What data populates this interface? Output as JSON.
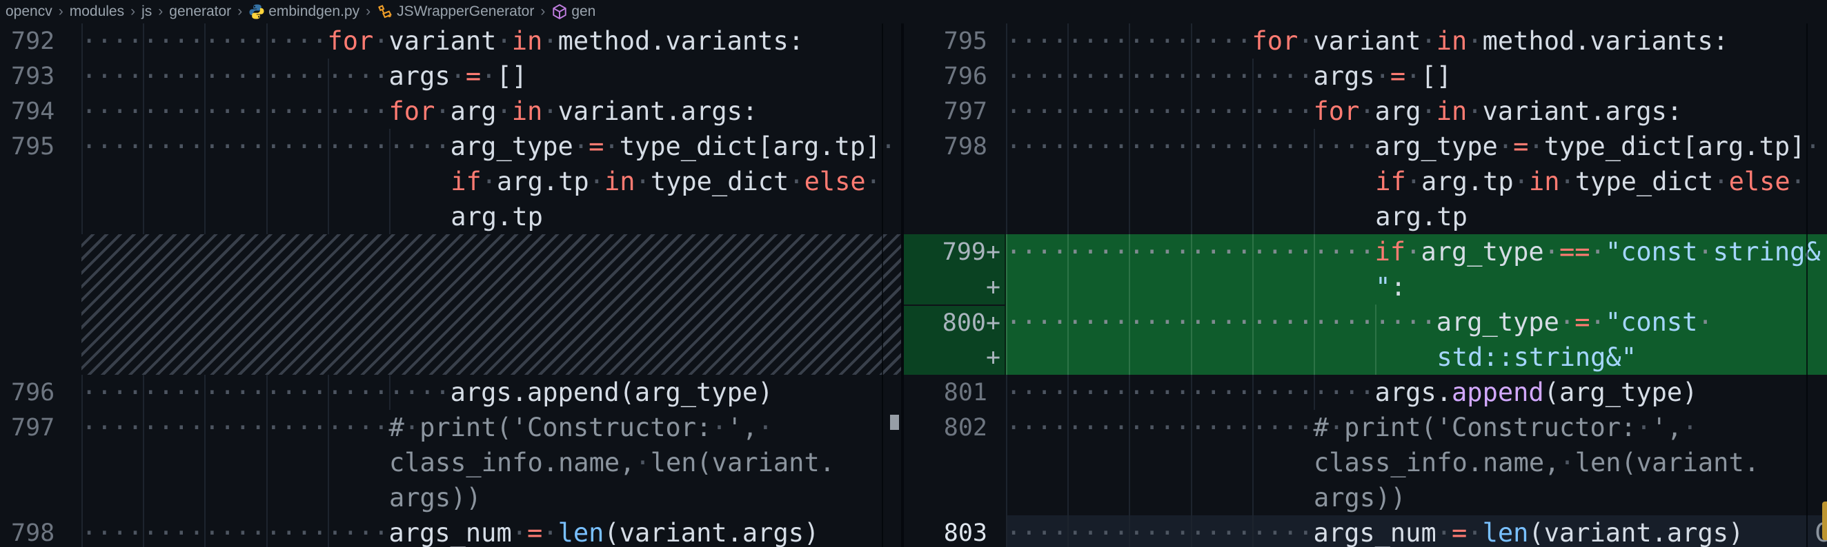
{
  "breadcrumb": {
    "separator": "›",
    "items": [
      {
        "label": "opencv"
      },
      {
        "label": "modules"
      },
      {
        "label": "js"
      },
      {
        "label": "generator"
      },
      {
        "label": "embindgen.py",
        "icon": "python-icon"
      },
      {
        "label": "JSWrapperGenerator",
        "icon": "class-icon"
      },
      {
        "label": "gen",
        "icon": "method-icon"
      }
    ]
  },
  "colors": {
    "background": "#0d1117",
    "added_line_bg": "#0f5c2c",
    "added_gutter_bg": "#0a4222",
    "keyword": "#ff7b72",
    "string": "#a5d6ff",
    "function": "#d2a8ff",
    "builtin": "#79c0ff",
    "comment": "#8b949e",
    "text": "#d6dde6",
    "line_number": "#6e7681",
    "current_line_bg": "#171e29",
    "overview_marker": "#bd9530"
  },
  "left_pane": {
    "rows": [
      {
        "num": "792",
        "guides": 4,
        "tokens": [
          {
            "c": "ws",
            "t": "                "
          },
          {
            "c": "kw",
            "t": "for"
          },
          {
            "c": "tx",
            "t": " variant "
          },
          {
            "c": "kw",
            "t": "in"
          },
          {
            "c": "tx",
            "t": " method.variants:"
          }
        ]
      },
      {
        "num": "793",
        "guides": 5,
        "tokens": [
          {
            "c": "ws",
            "t": "                    "
          },
          {
            "c": "tx",
            "t": "args "
          },
          {
            "c": "kw",
            "t": "="
          },
          {
            "c": "tx",
            "t": " []"
          }
        ]
      },
      {
        "num": "794",
        "guides": 5,
        "tokens": [
          {
            "c": "ws",
            "t": "                    "
          },
          {
            "c": "kw",
            "t": "for"
          },
          {
            "c": "tx",
            "t": " arg "
          },
          {
            "c": "kw",
            "t": "in"
          },
          {
            "c": "tx",
            "t": " variant.args:"
          }
        ]
      },
      {
        "num": "795",
        "guides": 6,
        "tokens": [
          {
            "c": "ws",
            "t": "                        "
          },
          {
            "c": "tx",
            "t": "arg_type "
          },
          {
            "c": "kw",
            "t": "="
          },
          {
            "c": "tx",
            "t": " type_dict[arg.tp] "
          }
        ]
      },
      {
        "num": "",
        "pad": 24,
        "guides": 6,
        "tokens": [
          {
            "c": "kw",
            "t": "if"
          },
          {
            "c": "tx",
            "t": " arg.tp "
          },
          {
            "c": "kw",
            "t": "in"
          },
          {
            "c": "tx",
            "t": " type_dict "
          },
          {
            "c": "kw",
            "t": "else"
          },
          {
            "c": "tx",
            "t": " "
          }
        ]
      },
      {
        "num": "",
        "pad": 24,
        "guides": 6,
        "tokens": [
          {
            "c": "tx",
            "t": "arg.tp"
          }
        ]
      },
      {
        "type": "hatch"
      },
      {
        "type": "hatch"
      },
      {
        "type": "hatch"
      },
      {
        "type": "hatch"
      },
      {
        "num": "796",
        "guides": 6,
        "tokens": [
          {
            "c": "ws",
            "t": "                        "
          },
          {
            "c": "tx",
            "t": "args.append(arg_type)"
          }
        ]
      },
      {
        "num": "797",
        "guides": 5,
        "tokens": [
          {
            "c": "ws",
            "t": "                    "
          },
          {
            "c": "cm",
            "t": "# print('Constructor: ', "
          }
        ]
      },
      {
        "num": "",
        "pad": 20,
        "guides": 5,
        "tokens": [
          {
            "c": "cm",
            "t": "class_info.name, len(variant."
          }
        ]
      },
      {
        "num": "",
        "pad": 20,
        "guides": 5,
        "tokens": [
          {
            "c": "cm",
            "t": "args))"
          }
        ]
      },
      {
        "num": "798",
        "guides": 5,
        "tokens": [
          {
            "c": "ws",
            "t": "                    "
          },
          {
            "c": "tx",
            "t": "args_num "
          },
          {
            "c": "kw",
            "t": "="
          },
          {
            "c": "tx",
            "t": " "
          },
          {
            "c": "bi",
            "t": "len"
          },
          {
            "c": "tx",
            "t": "(variant.args)"
          }
        ]
      }
    ]
  },
  "right_pane": {
    "clipped_char": "C",
    "rows": [
      {
        "num": "795",
        "guides": 4,
        "tokens": [
          {
            "c": "ws",
            "t": "                "
          },
          {
            "c": "kw",
            "t": "for"
          },
          {
            "c": "tx",
            "t": " variant "
          },
          {
            "c": "kw",
            "t": "in"
          },
          {
            "c": "tx",
            "t": " method.variants:"
          }
        ]
      },
      {
        "num": "796",
        "guides": 5,
        "tokens": [
          {
            "c": "ws",
            "t": "                    "
          },
          {
            "c": "tx",
            "t": "args "
          },
          {
            "c": "kw",
            "t": "="
          },
          {
            "c": "tx",
            "t": " []"
          }
        ]
      },
      {
        "num": "797",
        "guides": 5,
        "tokens": [
          {
            "c": "ws",
            "t": "                    "
          },
          {
            "c": "kw",
            "t": "for"
          },
          {
            "c": "tx",
            "t": " arg "
          },
          {
            "c": "kw",
            "t": "in"
          },
          {
            "c": "tx",
            "t": " variant.args:"
          }
        ]
      },
      {
        "num": "798",
        "guides": 6,
        "tokens": [
          {
            "c": "ws",
            "t": "                        "
          },
          {
            "c": "tx",
            "t": "arg_type "
          },
          {
            "c": "kw",
            "t": "="
          },
          {
            "c": "tx",
            "t": " type_dict[arg.tp] "
          }
        ]
      },
      {
        "num": "",
        "pad": 24,
        "guides": 6,
        "tokens": [
          {
            "c": "kw",
            "t": "if"
          },
          {
            "c": "tx",
            "t": " arg.tp "
          },
          {
            "c": "kw",
            "t": "in"
          },
          {
            "c": "tx",
            "t": " type_dict "
          },
          {
            "c": "kw",
            "t": "else"
          },
          {
            "c": "tx",
            "t": " "
          }
        ]
      },
      {
        "num": "",
        "pad": 24,
        "guides": 6,
        "tokens": [
          {
            "c": "tx",
            "t": "arg.tp"
          }
        ]
      },
      {
        "num": "799",
        "plus": "+",
        "type": "added",
        "guides": 6,
        "tokens": [
          {
            "c": "ws",
            "t": "                        "
          },
          {
            "c": "kw",
            "t": "if"
          },
          {
            "c": "tx",
            "t": " arg_type "
          },
          {
            "c": "kw",
            "t": "=="
          },
          {
            "c": "tx",
            "t": " "
          },
          {
            "c": "str",
            "t": "\"const string&"
          }
        ]
      },
      {
        "num": "",
        "plus": "+",
        "type": "added",
        "pad": 24,
        "guides": 6,
        "tokens": [
          {
            "c": "str",
            "t": "\""
          },
          {
            "c": "tx",
            "t": ":"
          }
        ]
      },
      {
        "num": "800",
        "plus": "+",
        "type": "added",
        "sep": true,
        "guides": 7,
        "tokens": [
          {
            "c": "ws",
            "t": "                            "
          },
          {
            "c": "tx",
            "t": "arg_type "
          },
          {
            "c": "kw",
            "t": "="
          },
          {
            "c": "tx",
            "t": " "
          },
          {
            "c": "str",
            "t": "\"const "
          }
        ]
      },
      {
        "num": "",
        "plus": "+",
        "type": "added",
        "pad": 28,
        "guides": 7,
        "tokens": [
          {
            "c": "str",
            "t": "std::string&\""
          }
        ]
      },
      {
        "num": "801",
        "guides": 6,
        "tokens": [
          {
            "c": "ws",
            "t": "                        "
          },
          {
            "c": "tx",
            "t": "args."
          },
          {
            "c": "fn",
            "t": "append"
          },
          {
            "c": "tx",
            "t": "(arg_type)"
          }
        ]
      },
      {
        "num": "802",
        "guides": 5,
        "tokens": [
          {
            "c": "ws",
            "t": "                    "
          },
          {
            "c": "cm",
            "t": "# print('Constructor: ', "
          }
        ]
      },
      {
        "num": "",
        "pad": 20,
        "guides": 5,
        "tokens": [
          {
            "c": "cm",
            "t": "class_info.name, len(variant."
          }
        ]
      },
      {
        "num": "",
        "pad": 20,
        "guides": 5,
        "tokens": [
          {
            "c": "cm",
            "t": "args))"
          }
        ]
      },
      {
        "num": "803",
        "current": true,
        "guides": 5,
        "tokens": [
          {
            "c": "ws",
            "t": "                    "
          },
          {
            "c": "tx",
            "t": "args_num "
          },
          {
            "c": "kw",
            "t": "="
          },
          {
            "c": "tx",
            "t": " "
          },
          {
            "c": "bi",
            "t": "len"
          },
          {
            "c": "tx",
            "t": "(variant.args)"
          }
        ]
      }
    ]
  }
}
